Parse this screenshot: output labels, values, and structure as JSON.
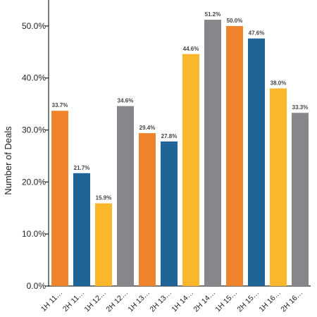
{
  "chart_data": {
    "type": "bar",
    "ylabel": "Number of Deals",
    "ylim": [
      0,
      0.55
    ],
    "yticks": [
      0,
      0.1,
      0.2,
      0.3,
      0.4,
      0.5
    ],
    "ytick_labels": [
      "0.0%",
      "10.0%",
      "20.0%",
      "30.0%",
      "40.0%",
      "50.0%"
    ],
    "grid": false,
    "legend": "none",
    "categories": [
      "1H 11…",
      "2H 11…",
      "1H 12…",
      "2H 12…",
      "1H 13…",
      "2H 13…",
      "1H 14…",
      "2H 14…",
      "1H 15…",
      "2H 15…",
      "1H 16…",
      "2H 16…"
    ],
    "values": [
      0.337,
      0.217,
      0.159,
      0.346,
      0.294,
      0.278,
      0.446,
      0.512,
      0.5,
      0.476,
      0.38,
      0.333
    ],
    "value_labels": [
      "33.7%",
      "21.7%",
      "15.9%",
      "34.6%",
      "29.4%",
      "27.8%",
      "44.6%",
      "51.2%",
      "50.0%",
      "47.6%",
      "38.0%",
      "33.3%"
    ],
    "bar_colors": [
      "#F0842C",
      "#1F6496",
      "#FBB72B",
      "#86878A",
      "#F0842C",
      "#1F6496",
      "#FBB72B",
      "#86878A",
      "#F0842C",
      "#1F6496",
      "#FBB72B",
      "#86878A"
    ],
    "axis_color": "#222222"
  }
}
